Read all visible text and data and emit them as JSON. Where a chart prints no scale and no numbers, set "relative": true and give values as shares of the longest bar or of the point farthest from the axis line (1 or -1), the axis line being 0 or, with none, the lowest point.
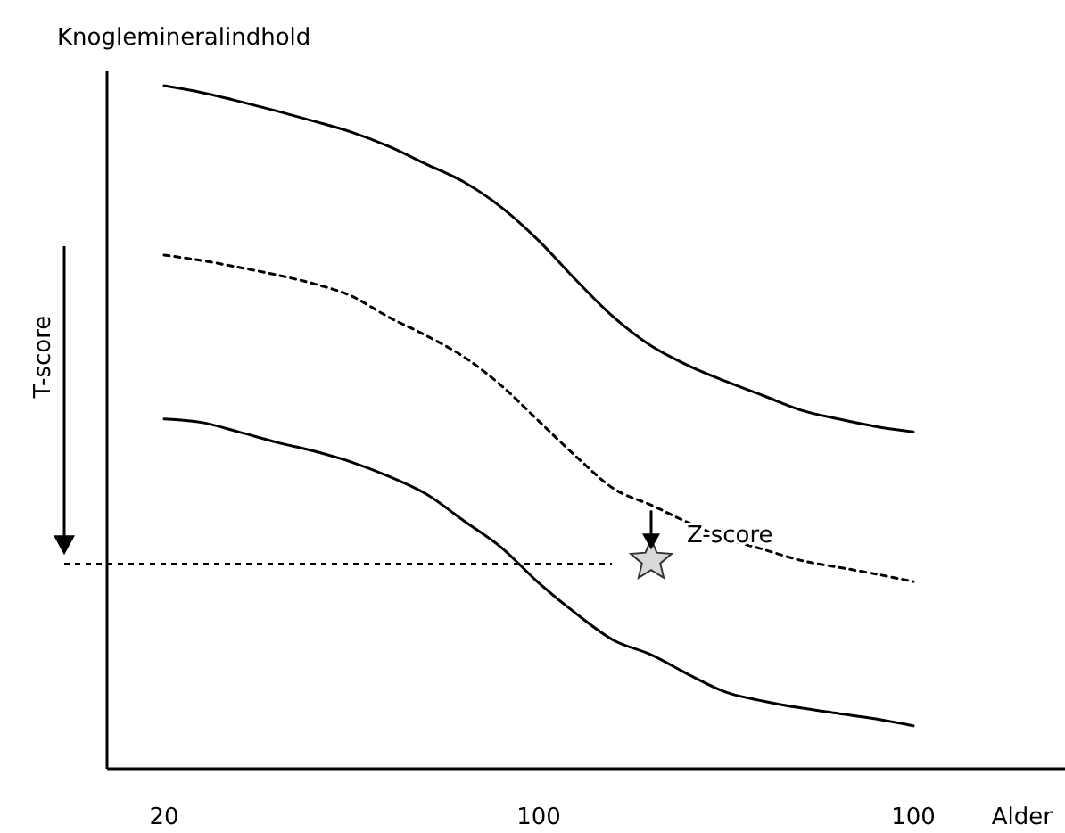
{
  "chart_data": {
    "type": "line",
    "relative": true,
    "xlabel": "Alder",
    "ylabel": "Knoglemineralindhold",
    "categories": [
      "20",
      null,
      null,
      null,
      null,
      null,
      null,
      null,
      null,
      null,
      "100",
      null,
      null,
      null,
      null,
      null,
      null,
      null,
      null,
      null,
      "100"
    ],
    "series": [
      {
        "color": "#000000",
        "line_style": "solid",
        "values": [
          1.0,
          0.99,
          0.977,
          0.963,
          0.948,
          0.932,
          0.911,
          0.885,
          0.859,
          0.822,
          0.773,
          0.715,
          0.661,
          0.619,
          0.59,
          0.567,
          0.546,
          0.525,
          0.512,
          0.501,
          0.493
        ]
      },
      {
        "color": "#000000",
        "line_style": "dashed",
        "values": [
          0.752,
          0.744,
          0.734,
          0.723,
          0.71,
          0.692,
          0.661,
          0.634,
          0.603,
          0.561,
          0.509,
          0.457,
          0.41,
          0.386,
          0.36,
          0.337,
          0.321,
          0.305,
          0.295,
          0.285,
          0.274
        ]
      },
      {
        "color": "#000000",
        "line_style": "solid",
        "values": [
          0.512,
          0.507,
          0.493,
          0.478,
          0.465,
          0.449,
          0.428,
          0.402,
          0.363,
          0.324,
          0.272,
          0.227,
          0.188,
          0.167,
          0.138,
          0.112,
          0.099,
          0.089,
          0.081,
          0.073,
          0.063
        ]
      },
      {
        "type": "scatter",
        "marker": "star",
        "color": "#d9d9d9",
        "values": [
          null,
          null,
          null,
          null,
          null,
          null,
          null,
          null,
          null,
          null,
          null,
          null,
          null,
          0.305,
          null,
          null,
          null,
          null,
          null,
          null,
          null
        ]
      }
    ],
    "ref_lines": [
      {
        "axis": "y",
        "value": 0.3,
        "line_style": "dashed",
        "color": "#000000"
      }
    ],
    "annotations": [
      "T-score",
      "Z-score"
    ],
    "grid": false
  }
}
